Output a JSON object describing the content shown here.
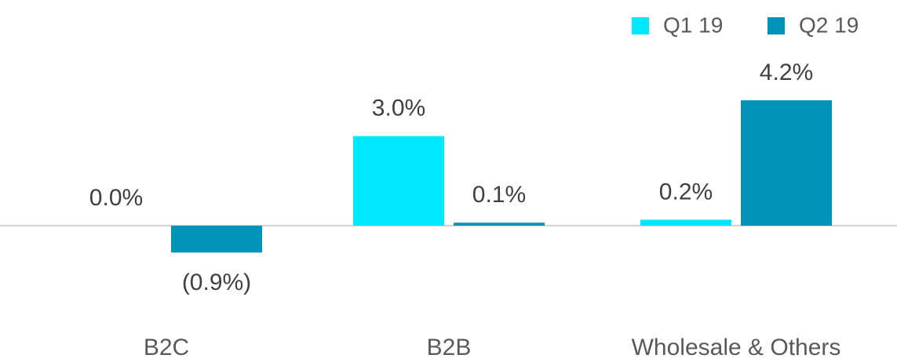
{
  "chart_data": {
    "type": "bar",
    "categories": [
      "B2C",
      "B2B",
      "Wholesale & Others"
    ],
    "series": [
      {
        "name": "Q1 19",
        "color": "#00e8fc",
        "values": [
          0.0,
          3.0,
          0.2
        ],
        "value_labels": [
          "0.0%",
          "3.0%",
          "0.2%"
        ]
      },
      {
        "name": "Q2 19",
        "color": "#0093b8",
        "values": [
          -0.9,
          0.1,
          4.2
        ],
        "value_labels": [
          "(0.9%)",
          "0.1%",
          "4.2%"
        ]
      }
    ],
    "legend": "top-right"
  }
}
